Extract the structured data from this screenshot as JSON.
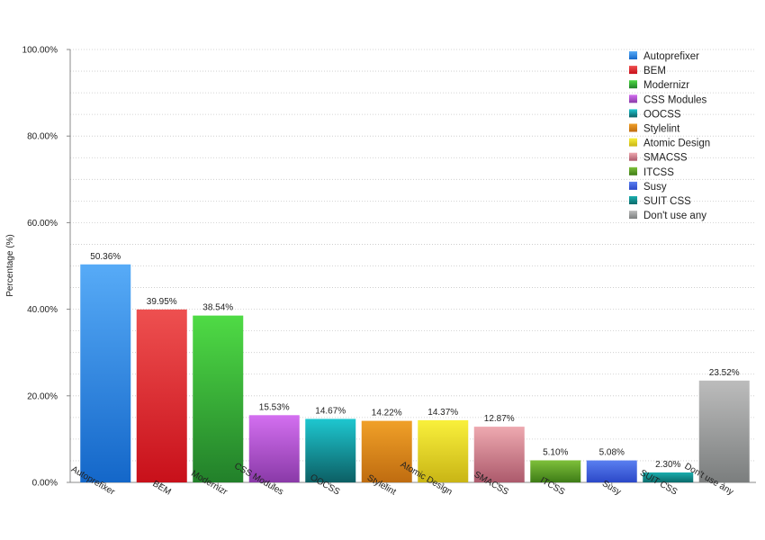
{
  "chart_data": {
    "type": "bar",
    "title": "",
    "xlabel": "",
    "ylabel": "Percentage (%)",
    "ylim": [
      0,
      100
    ],
    "y_ticks": [
      0,
      20,
      40,
      60,
      80,
      100
    ],
    "y_tick_labels": [
      "0.00%",
      "20.00%",
      "40.00%",
      "60.00%",
      "80.00%",
      "100.00%"
    ],
    "grid": true,
    "legend_position": "top-right",
    "categories": [
      "Autoprefixer",
      "BEM",
      "Modernizr",
      "CSS Modules",
      "OOCSS",
      "Stylelint",
      "Atomic Design",
      "SMACSS",
      "ITCSS",
      "Susy",
      "SUIT CSS",
      "Don't use any"
    ],
    "values": [
      50.36,
      39.95,
      38.54,
      15.53,
      14.67,
      14.22,
      14.37,
      12.87,
      5.1,
      5.08,
      2.3,
      23.52
    ],
    "value_labels": [
      "50.36%",
      "39.95%",
      "38.54%",
      "15.53%",
      "14.67%",
      "14.22%",
      "14.37%",
      "12.87%",
      "5.10%",
      "5.08%",
      "2.30%",
      "23.52%"
    ],
    "colors": [
      [
        "#57abf7",
        "#1467c9"
      ],
      [
        "#ee5050",
        "#c8101a"
      ],
      [
        "#4fdb45",
        "#22802a"
      ],
      [
        "#d36ff0",
        "#8a3aa8"
      ],
      [
        "#1ec7d0",
        "#0c5f64"
      ],
      [
        "#f0a028",
        "#bf6c10"
      ],
      [
        "#f9f03c",
        "#c9b515"
      ],
      [
        "#eea9b0",
        "#ac5a6c"
      ],
      [
        "#7ec03a",
        "#3e7c17"
      ],
      [
        "#5a7ff0",
        "#2b48c8"
      ],
      [
        "#1aaeae",
        "#0b6b6b"
      ],
      [
        "#bcbcbc",
        "#7b7e7e"
      ]
    ]
  }
}
